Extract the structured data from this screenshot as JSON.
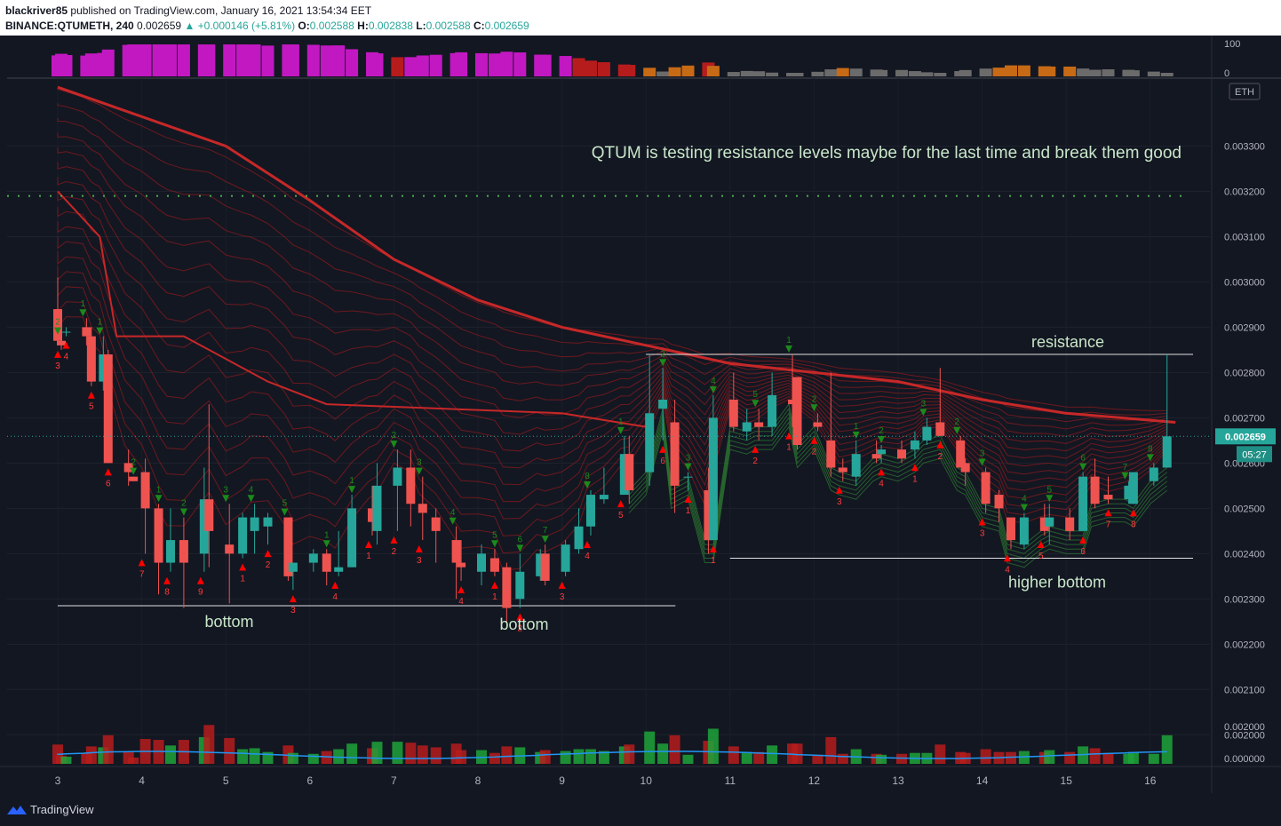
{
  "header": {
    "user": "blackriver85",
    "published": "published on TradingView.com, January 16, 2021 13:54:34 EET",
    "symbol": "BINANCE:QTUMETH, 240",
    "last": "0.002659",
    "change": "▲ +0.000146 (+5.81%)",
    "o_label": "O:",
    "o": "0.002588",
    "h_label": "H:",
    "h": "0.002838",
    "l_label": "L:",
    "l": "0.002588",
    "c_label": "C:",
    "c": "0.002659"
  },
  "footer": {
    "brand": "TradingView"
  },
  "colors": {
    "background": "#131722",
    "up": "#26a69a",
    "down": "#ef5350",
    "ema_main": "#c62828",
    "ribbon_red": "#b71c1c",
    "ribbon_green": "#2e7d32",
    "label_green": "#c8e6c9",
    "price_tag": "#26a69a"
  },
  "chart_data": [
    {
      "type": "candlestick",
      "title": "",
      "annotations": [
        "QTUM is testing resistance levels maybe for the last time and break them good",
        "resistance",
        "bottom",
        "bottom",
        "higher bottom"
      ],
      "currency_label": "ETH",
      "x_tick_labels": [
        "3",
        "4",
        "5",
        "6",
        "7",
        "8",
        "9",
        "10",
        "11",
        "12",
        "13",
        "14",
        "15",
        "16"
      ],
      "y_tick_labels": [
        "0.003300",
        "0.003200",
        "0.003100",
        "0.003000",
        "0.002900",
        "0.002800",
        "0.002700",
        "0.002600",
        "0.002500",
        "0.002400",
        "0.002300",
        "0.002200",
        "0.002100",
        "0.002000"
      ],
      "ylim": [
        0.00203,
        0.00345
      ],
      "current_price_label": "0.002659",
      "countdown_label": "05:27",
      "horizontal_levels": [
        {
          "name": "resistance",
          "value": 0.00284
        },
        {
          "name": "dotted_resistance",
          "value": 0.00319
        },
        {
          "name": "higher bottom",
          "value": 0.00239
        },
        {
          "name": "bottom",
          "value": 0.002285
        }
      ],
      "candles": [
        {
          "x": 3.0,
          "o": 0.00294,
          "h": 0.00301,
          "l": 0.00286,
          "c": 0.00287
        },
        {
          "x": 3.0,
          "o": 0.00287,
          "h": 0.00288,
          "l": 0.00285,
          "c": 0.00286
        },
        {
          "x": 3.1,
          "o": 0.00289,
          "h": 0.0029,
          "l": 0.00288,
          "c": 0.00289
        },
        {
          "x": 3.3,
          "o": 0.0029,
          "h": 0.00292,
          "l": 0.00286,
          "c": 0.00288
        },
        {
          "x": 3.4,
          "o": 0.00288,
          "h": 0.0029,
          "l": 0.00277,
          "c": 0.00278
        },
        {
          "x": 3.5,
          "o": 0.00278,
          "h": 0.00288,
          "l": 0.00276,
          "c": 0.00284
        },
        {
          "x": 3.6,
          "o": 0.00284,
          "h": 0.00285,
          "l": 0.0026,
          "c": 0.0026
        },
        {
          "x": 3.8,
          "o": 0.0026,
          "h": 0.00263,
          "l": 0.00255,
          "c": 0.00258
        },
        {
          "x": 3.9,
          "o": 0.00257,
          "h": 0.00257,
          "l": 0.00256,
          "c": 0.00256
        },
        {
          "x": 4.0,
          "o": 0.00258,
          "h": 0.00261,
          "l": 0.0024,
          "c": 0.0025
        },
        {
          "x": 4.2,
          "o": 0.0025,
          "h": 0.00251,
          "l": 0.00231,
          "c": 0.00238
        },
        {
          "x": 4.3,
          "o": 0.00238,
          "h": 0.0025,
          "l": 0.00236,
          "c": 0.00243
        },
        {
          "x": 4.5,
          "o": 0.00243,
          "h": 0.00248,
          "l": 0.00228,
          "c": 0.00238
        },
        {
          "x": 4.7,
          "o": 0.0024,
          "h": 0.00259,
          "l": 0.00236,
          "c": 0.00252
        },
        {
          "x": 4.8,
          "o": 0.00252,
          "h": 0.00273,
          "l": 0.00237,
          "c": 0.00245
        },
        {
          "x": 5.0,
          "o": 0.00242,
          "h": 0.00251,
          "l": 0.00229,
          "c": 0.0024
        },
        {
          "x": 5.2,
          "o": 0.0024,
          "h": 0.00249,
          "l": 0.00239,
          "c": 0.00248
        },
        {
          "x": 5.3,
          "o": 0.00245,
          "h": 0.00251,
          "l": 0.0024,
          "c": 0.00248
        },
        {
          "x": 5.5,
          "o": 0.00246,
          "h": 0.00249,
          "l": 0.00242,
          "c": 0.00248
        },
        {
          "x": 5.7,
          "o": 0.00248,
          "h": 0.00248,
          "l": 0.00234,
          "c": 0.00235
        },
        {
          "x": 5.8,
          "o": 0.00236,
          "h": 0.00238,
          "l": 0.00232,
          "c": 0.00238
        },
        {
          "x": 6.0,
          "o": 0.00238,
          "h": 0.00241,
          "l": 0.00236,
          "c": 0.0024
        },
        {
          "x": 6.2,
          "o": 0.0024,
          "h": 0.00241,
          "l": 0.00233,
          "c": 0.00236
        },
        {
          "x": 6.3,
          "o": 0.00236,
          "h": 0.00245,
          "l": 0.00235,
          "c": 0.00237
        },
        {
          "x": 6.5,
          "o": 0.00237,
          "h": 0.00253,
          "l": 0.00237,
          "c": 0.0025
        },
        {
          "x": 6.7,
          "o": 0.0025,
          "h": 0.00255,
          "l": 0.00244,
          "c": 0.00247
        },
        {
          "x": 6.8,
          "o": 0.00245,
          "h": 0.0026,
          "l": 0.00242,
          "c": 0.00255
        },
        {
          "x": 7.0,
          "o": 0.00255,
          "h": 0.00263,
          "l": 0.00245,
          "c": 0.00259
        },
        {
          "x": 7.2,
          "o": 0.00259,
          "h": 0.00263,
          "l": 0.00246,
          "c": 0.00251
        },
        {
          "x": 7.3,
          "o": 0.00251,
          "h": 0.00257,
          "l": 0.00243,
          "c": 0.00249
        },
        {
          "x": 7.5,
          "o": 0.00248,
          "h": 0.0025,
          "l": 0.00238,
          "c": 0.00245
        },
        {
          "x": 7.7,
          "o": 0.00243,
          "h": 0.00246,
          "l": 0.0023,
          "c": 0.00238
        },
        {
          "x": 7.8,
          "o": 0.00238,
          "h": 0.00243,
          "l": 0.00234,
          "c": 0.00237
        },
        {
          "x": 8.0,
          "o": 0.00236,
          "h": 0.00242,
          "l": 0.00233,
          "c": 0.0024
        },
        {
          "x": 8.2,
          "o": 0.00239,
          "h": 0.00241,
          "l": 0.00235,
          "c": 0.00236
        },
        {
          "x": 8.3,
          "o": 0.00237,
          "h": 0.00238,
          "l": 0.00225,
          "c": 0.00228
        },
        {
          "x": 8.5,
          "o": 0.0023,
          "h": 0.0024,
          "l": 0.00228,
          "c": 0.00236
        },
        {
          "x": 8.7,
          "o": 0.00235,
          "h": 0.00241,
          "l": 0.00234,
          "c": 0.0024
        },
        {
          "x": 8.8,
          "o": 0.0024,
          "h": 0.00242,
          "l": 0.00233,
          "c": 0.00234
        },
        {
          "x": 9.0,
          "o": 0.00236,
          "h": 0.00243,
          "l": 0.00235,
          "c": 0.00242
        },
        {
          "x": 9.2,
          "o": 0.00241,
          "h": 0.0025,
          "l": 0.0024,
          "c": 0.00246
        },
        {
          "x": 9.3,
          "o": 0.00246,
          "h": 0.00254,
          "l": 0.00244,
          "c": 0.00253
        },
        {
          "x": 9.5,
          "o": 0.00252,
          "h": 0.00259,
          "l": 0.00251,
          "c": 0.00253
        },
        {
          "x": 9.7,
          "o": 0.00253,
          "h": 0.00266,
          "l": 0.00253,
          "c": 0.00262
        },
        {
          "x": 9.8,
          "o": 0.00262,
          "h": 0.00266,
          "l": 0.00251,
          "c": 0.00254
        },
        {
          "x": 10.0,
          "o": 0.00258,
          "h": 0.00284,
          "l": 0.00255,
          "c": 0.00271
        },
        {
          "x": 10.2,
          "o": 0.00272,
          "h": 0.00281,
          "l": 0.00265,
          "c": 0.00274
        },
        {
          "x": 10.3,
          "o": 0.00269,
          "h": 0.00274,
          "l": 0.00249,
          "c": 0.00255
        },
        {
          "x": 10.5,
          "o": 0.00257,
          "h": 0.00258,
          "l": 0.00254,
          "c": 0.00257
        },
        {
          "x": 10.7,
          "o": 0.00254,
          "h": 0.00259,
          "l": 0.0024,
          "c": 0.00243
        },
        {
          "x": 10.8,
          "o": 0.00243,
          "h": 0.00275,
          "l": 0.00243,
          "c": 0.0027
        },
        {
          "x": 11.0,
          "o": 0.00274,
          "h": 0.0028,
          "l": 0.00267,
          "c": 0.00268
        },
        {
          "x": 11.2,
          "o": 0.00267,
          "h": 0.00272,
          "l": 0.00265,
          "c": 0.00269
        },
        {
          "x": 11.3,
          "o": 0.00269,
          "h": 0.00272,
          "l": 0.00265,
          "c": 0.00268
        },
        {
          "x": 11.5,
          "o": 0.00268,
          "h": 0.0028,
          "l": 0.00266,
          "c": 0.00275
        },
        {
          "x": 11.7,
          "o": 0.00274,
          "h": 0.00284,
          "l": 0.00268,
          "c": 0.00273
        },
        {
          "x": 11.8,
          "o": 0.00279,
          "h": 0.00279,
          "l": 0.00263,
          "c": 0.00264
        },
        {
          "x": 12.0,
          "o": 0.00269,
          "h": 0.00271,
          "l": 0.00267,
          "c": 0.00268
        },
        {
          "x": 12.2,
          "o": 0.00265,
          "h": 0.0028,
          "l": 0.00257,
          "c": 0.00259
        },
        {
          "x": 12.3,
          "o": 0.00259,
          "h": 0.00261,
          "l": 0.00256,
          "c": 0.00258
        },
        {
          "x": 12.5,
          "o": 0.00257,
          "h": 0.00265,
          "l": 0.00255,
          "c": 0.00262
        },
        {
          "x": 12.7,
          "o": 0.00262,
          "h": 0.00265,
          "l": 0.0026,
          "c": 0.00261
        },
        {
          "x": 12.8,
          "o": 0.00262,
          "h": 0.00264,
          "l": 0.0026,
          "c": 0.00263
        },
        {
          "x": 13.0,
          "o": 0.00263,
          "h": 0.00265,
          "l": 0.0026,
          "c": 0.00261
        },
        {
          "x": 13.2,
          "o": 0.00263,
          "h": 0.00267,
          "l": 0.00261,
          "c": 0.00265
        },
        {
          "x": 13.3,
          "o": 0.00265,
          "h": 0.0027,
          "l": 0.00264,
          "c": 0.00268
        },
        {
          "x": 13.5,
          "o": 0.00269,
          "h": 0.00281,
          "l": 0.00266,
          "c": 0.00266
        },
        {
          "x": 13.7,
          "o": 0.00265,
          "h": 0.00266,
          "l": 0.00259,
          "c": 0.00259
        },
        {
          "x": 13.8,
          "o": 0.0026,
          "h": 0.00261,
          "l": 0.00255,
          "c": 0.00258
        },
        {
          "x": 14.0,
          "o": 0.00258,
          "h": 0.00259,
          "l": 0.00249,
          "c": 0.00251
        },
        {
          "x": 14.2,
          "o": 0.00253,
          "h": 0.00254,
          "l": 0.00247,
          "c": 0.0025
        },
        {
          "x": 14.3,
          "o": 0.00248,
          "h": 0.00248,
          "l": 0.00241,
          "c": 0.00243
        },
        {
          "x": 14.5,
          "o": 0.00242,
          "h": 0.00249,
          "l": 0.00241,
          "c": 0.00248
        },
        {
          "x": 14.7,
          "o": 0.00248,
          "h": 0.00251,
          "l": 0.00244,
          "c": 0.00245
        },
        {
          "x": 14.8,
          "o": 0.00246,
          "h": 0.00251,
          "l": 0.00242,
          "c": 0.00248
        },
        {
          "x": 15.0,
          "o": 0.00248,
          "h": 0.0025,
          "l": 0.00243,
          "c": 0.00245
        },
        {
          "x": 15.2,
          "o": 0.00245,
          "h": 0.00258,
          "l": 0.00245,
          "c": 0.00257
        },
        {
          "x": 15.3,
          "o": 0.00257,
          "h": 0.00261,
          "l": 0.0025,
          "c": 0.00251
        },
        {
          "x": 15.5,
          "o": 0.00253,
          "h": 0.00257,
          "l": 0.00251,
          "c": 0.00252
        },
        {
          "x": 15.7,
          "o": 0.00252,
          "h": 0.00256,
          "l": 0.00251,
          "c": 0.00255
        },
        {
          "x": 15.8,
          "o": 0.00251,
          "h": 0.00258,
          "l": 0.00251,
          "c": 0.00258
        },
        {
          "x": 16.0,
          "o": 0.00256,
          "h": 0.0026,
          "l": 0.00255,
          "c": 0.00259
        },
        {
          "x": 16.2,
          "o": 0.00259,
          "h": 0.00284,
          "l": 0.00259,
          "c": 0.002659
        }
      ],
      "ema_main": [
        {
          "x": 3.0,
          "y": 0.00343
        },
        {
          "x": 5.0,
          "y": 0.0033
        },
        {
          "x": 6.0,
          "y": 0.00318
        },
        {
          "x": 7.0,
          "y": 0.00305
        },
        {
          "x": 8.0,
          "y": 0.00296
        },
        {
          "x": 9.0,
          "y": 0.0029
        },
        {
          "x": 10.0,
          "y": 0.00286
        },
        {
          "x": 11.0,
          "y": 0.00282
        },
        {
          "x": 12.0,
          "y": 0.0028
        },
        {
          "x": 13.0,
          "y": 0.00278
        },
        {
          "x": 14.0,
          "y": 0.00274
        },
        {
          "x": 15.0,
          "y": 0.00271
        },
        {
          "x": 16.3,
          "y": 0.00269
        }
      ],
      "fast_line": [
        {
          "x": 3.0,
          "y": 0.0032
        },
        {
          "x": 3.5,
          "y": 0.0031
        },
        {
          "x": 3.7,
          "y": 0.00288
        },
        {
          "x": 4.5,
          "y": 0.00288
        },
        {
          "x": 5.5,
          "y": 0.00278
        },
        {
          "x": 6.2,
          "y": 0.00273
        },
        {
          "x": 9.0,
          "y": 0.00271
        },
        {
          "x": 10.0,
          "y": 0.00268
        }
      ],
      "signal_up_numbers": [
        "3",
        "4",
        "5",
        "6",
        "7",
        "8",
        "9",
        "1",
        "2",
        "3",
        "4",
        "1",
        "2",
        "3",
        "4",
        "1",
        "2",
        "3",
        "4",
        "5",
        "6",
        "1",
        "1",
        "2",
        "1",
        "2",
        "3",
        "4",
        "1",
        "2",
        "3",
        "4",
        "5",
        "6",
        "7",
        "8"
      ],
      "signal_down_numbers": [
        "2",
        "1",
        "1",
        "2",
        "1",
        "2",
        "3",
        "4",
        "5",
        "1",
        "1",
        "2",
        "3",
        "4",
        "5",
        "6",
        "7",
        "8",
        "1",
        "2",
        "3",
        "4",
        "5",
        "1",
        "2",
        "1",
        "2",
        "3",
        "2",
        "3",
        "4",
        "5",
        "6",
        "7",
        "8"
      ],
      "volume_y_tick_labels": [
        "0.002000",
        "0.000000"
      ],
      "oscillator_y_tick_labels": [
        "100",
        "0"
      ]
    }
  ]
}
